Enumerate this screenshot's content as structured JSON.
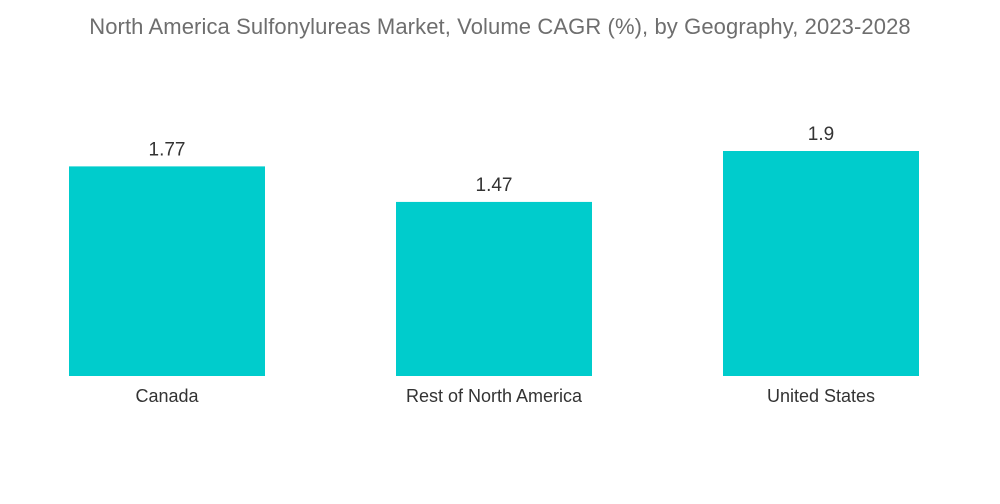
{
  "chart_data": {
    "type": "bar",
    "title": "North America Sulfonylureas Market, Volume CAGR (%), by Geography, 2023-2028",
    "categories": [
      "Canada",
      "Rest of North America",
      "United States"
    ],
    "values": [
      1.77,
      1.47,
      1.9
    ],
    "data_labels": [
      "1.77",
      "1.47",
      "1.9"
    ],
    "xlabel": "",
    "ylabel": "",
    "ylim": [
      0,
      1.9
    ],
    "grid": false,
    "legend": "none",
    "colors": {
      "bar": "#00cccc"
    }
  }
}
